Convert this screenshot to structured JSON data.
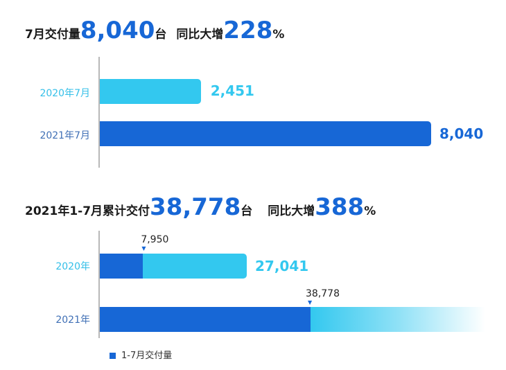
{
  "colors": {
    "dark_blue": "#1767d6",
    "light_blue": "#33c8ef",
    "light_label": "#33bfe8",
    "dark_label": "#3f6fb5",
    "axis": "#b8b8b8"
  },
  "headline1": {
    "prefix": "7月交付量",
    "value": "8,040",
    "unit": "台",
    "yoy_label": "同比大增",
    "yoy_value": "228",
    "pct": "%"
  },
  "headline2": {
    "prefix": "2021年1-7月累计交付",
    "value": "38,778",
    "unit": "台",
    "yoy_label": "同比大增",
    "yoy_value": "388",
    "pct": "%"
  },
  "chart_data": [
    {
      "type": "bar",
      "orientation": "horizontal",
      "categories": [
        "2020年7月",
        "2021年7月"
      ],
      "values": [
        2451,
        8040
      ],
      "value_labels": [
        "2,451",
        "8,040"
      ],
      "xlim": [
        0,
        8040
      ]
    },
    {
      "type": "bar",
      "orientation": "horizontal",
      "stacked": true,
      "categories": [
        "2020年",
        "2021年"
      ],
      "values": [
        27041,
        38778
      ],
      "value_labels": [
        "27,041",
        ""
      ],
      "segment_values": [
        7950,
        38778
      ],
      "segment_labels": [
        "7,950",
        "38,778"
      ],
      "xlim": [
        0,
        38778
      ],
      "legend": [
        "1-7月交付量"
      ]
    }
  ]
}
